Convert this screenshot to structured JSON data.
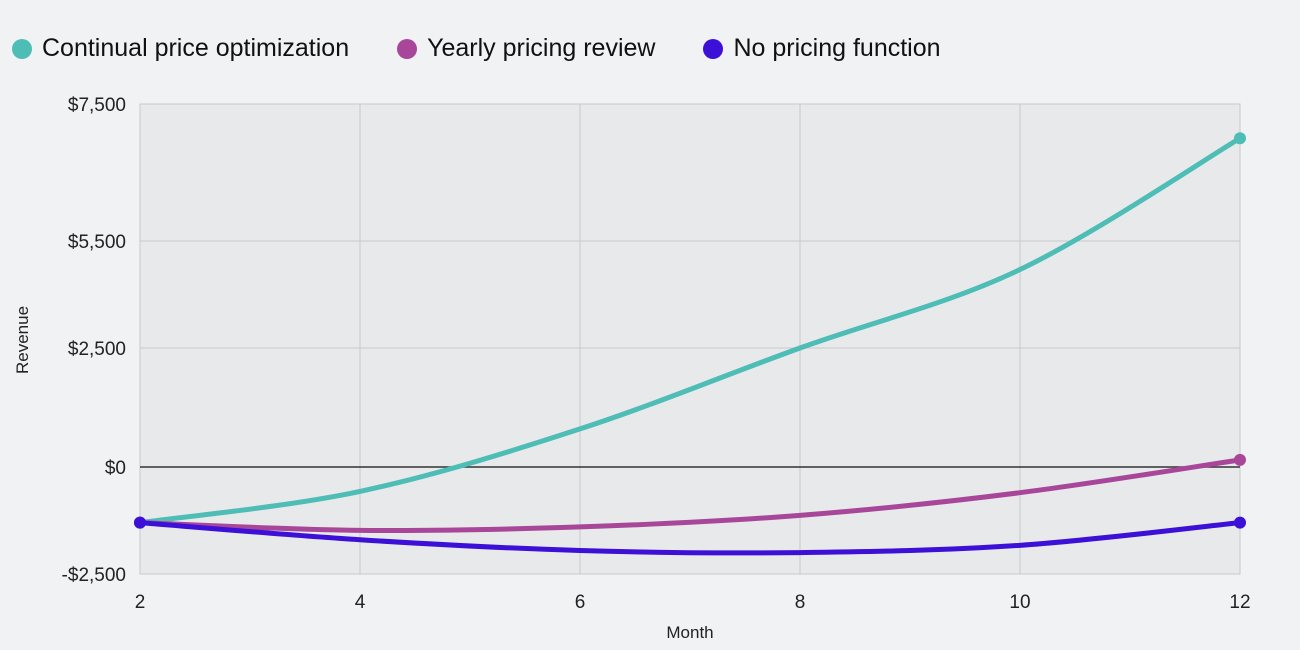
{
  "chart_data": {
    "type": "line",
    "title": "",
    "xlabel": "Month",
    "ylabel": "Revenue",
    "x": [
      2,
      4,
      6,
      8,
      10,
      12
    ],
    "xlim": [
      2,
      12
    ],
    "ylim": [
      -2500,
      7500
    ],
    "x_ticks": [
      "2",
      "4",
      "6",
      "8",
      "10",
      "12"
    ],
    "y_ticks": [
      {
        "value": 7500,
        "label": "$7,500"
      },
      {
        "value": 5500,
        "label": "$5,500"
      },
      {
        "value": 2500,
        "label": "$2,500"
      },
      {
        "value": 0,
        "label": "$0"
      },
      {
        "value": -2500,
        "label": "-$2,500"
      }
    ],
    "grid": true,
    "legend_position": "top-left",
    "series": [
      {
        "name": "Continual price optimization",
        "color": "#4dbdb6",
        "values": [
          -1300,
          -570,
          800,
          2500,
          4700,
          7000
        ]
      },
      {
        "name": "Yearly pricing review",
        "color": "#a8479a",
        "values": [
          -1300,
          -1480,
          -1400,
          -1130,
          -600,
          150
        ]
      },
      {
        "name": "No pricing function",
        "color": "#3c10d6",
        "values": [
          -1300,
          -1700,
          -1950,
          -2000,
          -1830,
          -1300
        ]
      }
    ]
  }
}
